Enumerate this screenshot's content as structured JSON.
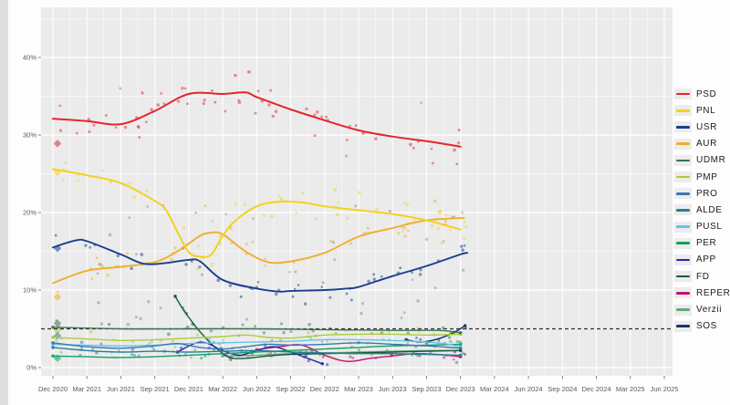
{
  "page": {
    "description": "Romanian party polling trend chart with scatter points, smoothed trend lines, 5% electoral threshold dashed line and party legend"
  },
  "chart_data": {
    "type": "scatter",
    "subtype": "poll-tracker-with-smoothed-trend-lines",
    "title": "",
    "xlabel": "",
    "ylabel": "",
    "x_tick_labels": [
      "Dec 2020",
      "Mar 2021",
      "Jun 2021",
      "Sep 2021",
      "Dec 2021",
      "Mar 2022",
      "Jun 2022",
      "Sep 2022",
      "Dec 2022",
      "Mar 2023",
      "Jun 2023",
      "Sep 2023",
      "Dec 2023",
      "Mar 2024",
      "Jun 2024",
      "Sep 2024",
      "Dec 2024",
      "Mar 2025",
      "Jun 2025"
    ],
    "y_tick_labels": [
      "0%",
      "10%",
      "20%",
      "30%",
      "40%"
    ],
    "y_tick_values": [
      0,
      10,
      20,
      30,
      40
    ],
    "y_minor_values": [
      5,
      15,
      25,
      35,
      45
    ],
    "ylim": [
      0,
      46.5
    ],
    "x_month_index_range": [
      0,
      54
    ],
    "grid": true,
    "panel_bg": "#ebebeb",
    "grid_color": "#ffffff",
    "axis_text_color": "#5a5a5a",
    "legend_position": "right",
    "threshold": {
      "value": 5,
      "color": "#2f2f2f",
      "style": "dashed",
      "label": "5% electoral threshold"
    },
    "series": [
      {
        "name": "PSD",
        "color": "#e4262c",
        "width": 2.0,
        "scatter_n": 60,
        "jitter": 3.0,
        "points": [
          [
            0,
            32.1
          ],
          [
            3,
            31.8
          ],
          [
            6,
            31.4
          ],
          [
            9,
            33.1
          ],
          [
            12,
            35.3
          ],
          [
            15,
            35.3
          ],
          [
            17,
            35.5
          ],
          [
            18,
            34.9
          ],
          [
            21,
            33.3
          ],
          [
            24,
            31.9
          ],
          [
            27,
            30.6
          ],
          [
            30,
            29.8
          ],
          [
            33,
            29.2
          ],
          [
            36,
            28.5
          ]
        ]
      },
      {
        "name": "PNL",
        "color": "#f2d21f",
        "width": 2.0,
        "scatter_n": 52,
        "jitter": 2.6,
        "points": [
          [
            0,
            25.6
          ],
          [
            3,
            24.8
          ],
          [
            6,
            23.8
          ],
          [
            9,
            21.5
          ],
          [
            10,
            20.3
          ],
          [
            11,
            17.5
          ],
          [
            12,
            14.9
          ],
          [
            13,
            14.3
          ],
          [
            14,
            14.6
          ],
          [
            15,
            17.0
          ],
          [
            16,
            18.8
          ],
          [
            18,
            20.8
          ],
          [
            20,
            21.4
          ],
          [
            22,
            21.3
          ],
          [
            24,
            20.8
          ],
          [
            27,
            20.3
          ],
          [
            30,
            19.8
          ],
          [
            33,
            19.0
          ],
          [
            36,
            17.8
          ]
        ]
      },
      {
        "name": "USR",
        "color": "#1a3e8c",
        "width": 1.9,
        "scatter_n": 42,
        "jitter": 2.0,
        "points": [
          [
            0,
            15.5
          ],
          [
            2,
            16.4
          ],
          [
            3,
            16.3
          ],
          [
            6,
            14.6
          ],
          [
            8,
            13.4
          ],
          [
            10,
            13.5
          ],
          [
            12,
            13.9
          ],
          [
            13,
            13.7
          ],
          [
            15,
            11.3
          ],
          [
            18,
            10.2
          ],
          [
            20,
            9.8
          ],
          [
            21,
            9.9
          ],
          [
            24,
            10.0
          ],
          [
            26,
            10.2
          ],
          [
            27,
            10.4
          ],
          [
            30,
            11.8
          ],
          [
            33,
            13.1
          ],
          [
            36,
            14.6
          ],
          [
            36.6,
            14.8
          ]
        ]
      },
      {
        "name": "AUR",
        "color": "#eeaf30",
        "width": 1.9,
        "scatter_n": 42,
        "jitter": 2.2,
        "points": [
          [
            0,
            10.9
          ],
          [
            3,
            12.5
          ],
          [
            6,
            13.0
          ],
          [
            9,
            13.6
          ],
          [
            11,
            15.0
          ],
          [
            13,
            17.0
          ],
          [
            14,
            17.4
          ],
          [
            15,
            17.2
          ],
          [
            17,
            15.0
          ],
          [
            19,
            13.6
          ],
          [
            21,
            13.7
          ],
          [
            24,
            14.8
          ],
          [
            27,
            16.9
          ],
          [
            30,
            18.0
          ],
          [
            33,
            19.0
          ],
          [
            36.3,
            19.3
          ]
        ]
      },
      {
        "name": "UDMR",
        "color": "#35714f",
        "width": 1.4,
        "scatter_n": 22,
        "jitter": 1.0,
        "points": [
          [
            0,
            5.2
          ],
          [
            6,
            5.0
          ],
          [
            12,
            5.0
          ],
          [
            18,
            5.0
          ],
          [
            24,
            4.9
          ],
          [
            30,
            4.8
          ],
          [
            34,
            4.8
          ],
          [
            36,
            4.5
          ]
        ]
      },
      {
        "name": "PMP",
        "color": "#aecb38",
        "width": 1.4,
        "scatter_n": 22,
        "jitter": 1.0,
        "points": [
          [
            0,
            3.9
          ],
          [
            3,
            3.7
          ],
          [
            6,
            3.5
          ],
          [
            9,
            3.6
          ],
          [
            12,
            3.8
          ],
          [
            15,
            4.0
          ],
          [
            17,
            4.2
          ],
          [
            19,
            3.9
          ],
          [
            21,
            3.8
          ],
          [
            24,
            4.2
          ],
          [
            27,
            4.3
          ],
          [
            30,
            4.3
          ],
          [
            33,
            4.2
          ],
          [
            36,
            4.3
          ]
        ]
      },
      {
        "name": "PRO",
        "color": "#3878af",
        "width": 1.4,
        "scatter_n": 20,
        "jitter": 0.9,
        "points": [
          [
            0,
            3.2
          ],
          [
            3,
            2.7
          ],
          [
            6,
            2.5
          ],
          [
            9,
            2.8
          ],
          [
            11,
            3.1
          ],
          [
            13,
            2.6
          ],
          [
            15,
            2.4
          ],
          [
            17,
            2.7
          ],
          [
            19,
            3.0
          ],
          [
            21,
            2.9
          ],
          [
            24,
            3.0
          ],
          [
            27,
            3.2
          ],
          [
            30,
            3.0
          ],
          [
            33,
            2.8
          ],
          [
            36,
            2.5
          ]
        ]
      },
      {
        "name": "ALDE",
        "color": "#267f96",
        "width": 1.4,
        "scatter_n": 16,
        "jitter": 0.8,
        "points": [
          [
            0,
            2.6
          ],
          [
            3,
            2.2
          ],
          [
            6,
            2.0
          ],
          [
            9,
            2.1
          ],
          [
            12,
            2.0
          ],
          [
            15,
            2.1
          ],
          [
            18,
            2.2
          ],
          [
            21,
            2.0
          ],
          [
            24,
            1.9
          ],
          [
            27,
            1.8
          ],
          [
            30,
            1.8
          ],
          [
            33,
            1.7
          ],
          [
            36,
            1.6
          ]
        ]
      },
      {
        "name": "PUSL",
        "color": "#63c3e8",
        "width": 1.4,
        "scatter_n": 18,
        "jitter": 0.9,
        "points": [
          [
            0,
            3.0
          ],
          [
            3,
            2.9
          ],
          [
            6,
            2.8
          ],
          [
            9,
            2.9
          ],
          [
            12,
            3.1
          ],
          [
            15,
            3.2
          ],
          [
            18,
            3.3
          ],
          [
            21,
            3.4
          ],
          [
            24,
            3.6
          ],
          [
            27,
            3.6
          ],
          [
            30,
            3.5
          ],
          [
            33,
            3.3
          ],
          [
            35,
            3.0
          ],
          [
            36,
            2.6
          ]
        ]
      },
      {
        "name": "PER",
        "color": "#13a05f",
        "width": 1.4,
        "scatter_n": 14,
        "jitter": 0.7,
        "points": [
          [
            0,
            1.5
          ],
          [
            3,
            1.4
          ],
          [
            6,
            1.3
          ],
          [
            9,
            1.4
          ],
          [
            12,
            1.6
          ],
          [
            15,
            1.8
          ],
          [
            18,
            2.0
          ],
          [
            21,
            2.2
          ],
          [
            24,
            2.4
          ],
          [
            27,
            2.6
          ],
          [
            30,
            2.8
          ],
          [
            33,
            2.9
          ],
          [
            36,
            3.0
          ]
        ]
      },
      {
        "name": "APP",
        "color": "#2628a8",
        "width": 1.4,
        "scatter_n": 10,
        "jitter": 0.8,
        "points": [
          [
            11,
            2.0
          ],
          [
            12.5,
            3.1
          ],
          [
            13.5,
            3.2
          ],
          [
            15,
            2.2
          ],
          [
            16.5,
            1.6
          ],
          [
            18,
            2.2
          ],
          [
            19.5,
            2.7
          ],
          [
            21,
            2.0
          ],
          [
            22.5,
            1.2
          ],
          [
            23.8,
            0.5
          ]
        ]
      },
      {
        "name": "FD",
        "color": "#155934",
        "width": 1.4,
        "scatter_n": 12,
        "jitter": 0.8,
        "points": [
          [
            10.8,
            9.2
          ],
          [
            11.5,
            7.5
          ],
          [
            12.5,
            5.5
          ],
          [
            13.5,
            3.8
          ],
          [
            14.5,
            2.4
          ],
          [
            15.6,
            1.3
          ],
          [
            17,
            1.2
          ],
          [
            19,
            1.5
          ],
          [
            21,
            1.7
          ],
          [
            24,
            1.8
          ],
          [
            27,
            1.9
          ],
          [
            30,
            2.0
          ],
          [
            33,
            2.1
          ],
          [
            36,
            2.2
          ]
        ]
      },
      {
        "name": "REPER",
        "color": "#c4116e",
        "width": 1.4,
        "scatter_n": 10,
        "jitter": 0.8,
        "points": [
          [
            18,
            2.3
          ],
          [
            20,
            2.7
          ],
          [
            22,
            2.9
          ],
          [
            24,
            1.6
          ],
          [
            26,
            0.8
          ],
          [
            28,
            1.2
          ],
          [
            30,
            1.5
          ],
          [
            32,
            1.8
          ],
          [
            34,
            1.7
          ],
          [
            36,
            1.4
          ]
        ]
      },
      {
        "name": "Verzii",
        "color": "#65a87b",
        "width": 1.4,
        "scatter_n": 8,
        "jitter": 0.6,
        "points": [
          [
            15,
            1.5
          ],
          [
            18,
            1.6
          ],
          [
            21,
            1.8
          ],
          [
            24,
            1.9
          ],
          [
            27,
            2.0
          ],
          [
            30,
            2.1
          ],
          [
            33,
            2.2
          ],
          [
            36,
            2.2
          ]
        ]
      },
      {
        "name": "SOS",
        "color": "#14386b",
        "width": 1.5,
        "scatter_n": 6,
        "jitter": 0.7,
        "points": [
          [
            31.2,
            3.6
          ],
          [
            32.5,
            3.3
          ],
          [
            34,
            3.7
          ],
          [
            35.5,
            4.6
          ],
          [
            36.4,
            5.4
          ]
        ]
      }
    ],
    "election_markers": [
      {
        "party": "PSD",
        "value": 28.9
      },
      {
        "party": "PNL",
        "value": 25.2
      },
      {
        "party": "USR",
        "value": 15.4
      },
      {
        "party": "AUR",
        "value": 9.1
      },
      {
        "party": "UDMR",
        "value": 5.7
      },
      {
        "party": "PMP",
        "value": 4.8
      },
      {
        "party": "PRO",
        "value": 4.1
      },
      {
        "party": "PER",
        "value": 1.2
      }
    ],
    "other_scatter": {
      "name": "unassigned-polls",
      "color": "#8a8a8a",
      "count": 70,
      "opacity": 0.5
    }
  },
  "legend": {
    "entries": [
      "PSD",
      "PNL",
      "USR",
      "AUR",
      "UDMR",
      "PMP",
      "PRO",
      "ALDE",
      "PUSL",
      "PER",
      "APP",
      "FD",
      "REPER",
      "Verzii",
      "SOS"
    ]
  }
}
